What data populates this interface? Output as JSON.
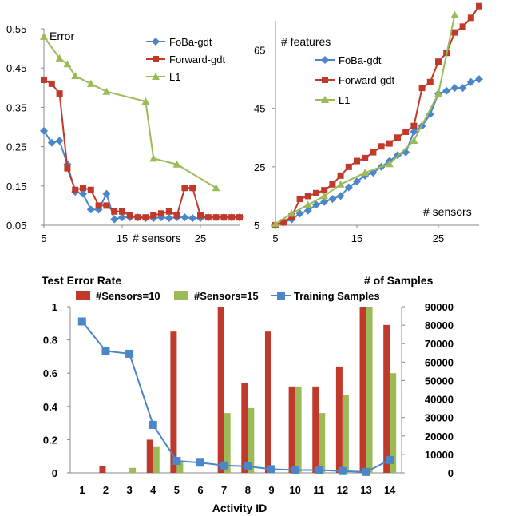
{
  "colors": {
    "blue": "#4a86c8",
    "red": "#c0392b",
    "green": "#9bbb59",
    "axis": "#888888"
  },
  "chart_data": [
    {
      "type": "line",
      "title": "Error",
      "xlabel": "# sensors",
      "xlim": [
        5,
        30
      ],
      "ylim": [
        0.05,
        0.55
      ],
      "xticks": [
        "5",
        "15",
        "25"
      ],
      "xtick_values": [
        5,
        15,
        25
      ],
      "yticks": [
        "0.05",
        "0.15",
        "0.25",
        "0.35",
        "0.45",
        "0.55"
      ],
      "ytick_values": [
        0.05,
        0.15,
        0.25,
        0.35,
        0.45,
        0.55
      ],
      "series": [
        {
          "name": "FoBa-gdt",
          "marker": "diamond",
          "color": "#4a86c8",
          "x": [
            5,
            6,
            7,
            8,
            9,
            10,
            11,
            12,
            13,
            14,
            15,
            16,
            17,
            18,
            19,
            20,
            21,
            22,
            23,
            24,
            25,
            26,
            27,
            28,
            29,
            30
          ],
          "y": [
            0.29,
            0.26,
            0.265,
            0.205,
            0.135,
            0.13,
            0.09,
            0.09,
            0.13,
            0.065,
            0.07,
            0.07,
            0.07,
            0.068,
            0.068,
            0.07,
            0.068,
            0.07,
            0.07,
            0.068,
            0.068,
            0.07,
            0.07,
            0.07,
            0.07,
            0.07
          ]
        },
        {
          "name": "Forward-gdt",
          "marker": "square",
          "color": "#c0392b",
          "x": [
            5,
            6,
            7,
            8,
            9,
            10,
            11,
            12,
            13,
            14,
            15,
            16,
            17,
            18,
            19,
            20,
            21,
            22,
            23,
            24,
            25,
            26,
            27,
            28,
            29,
            30
          ],
          "y": [
            0.42,
            0.41,
            0.385,
            0.195,
            0.14,
            0.145,
            0.14,
            0.1,
            0.1,
            0.085,
            0.085,
            0.075,
            0.07,
            0.07,
            0.075,
            0.08,
            0.085,
            0.075,
            0.145,
            0.145,
            0.075,
            0.07,
            0.07,
            0.07,
            0.07,
            0.07
          ]
        },
        {
          "name": "L1",
          "marker": "triangle",
          "color": "#9bbb59",
          "x": [
            5,
            7,
            8,
            9,
            11,
            13,
            18,
            19,
            22,
            27
          ],
          "y": [
            0.53,
            0.475,
            0.46,
            0.43,
            0.41,
            0.39,
            0.365,
            0.22,
            0.205,
            0.145
          ]
        }
      ]
    },
    {
      "type": "line",
      "title": "# features",
      "xlabel": "# sensors",
      "xlim": [
        5,
        30
      ],
      "ylim": [
        5,
        75
      ],
      "xticks": [
        "5",
        "15",
        "25"
      ],
      "xtick_values": [
        5,
        15,
        25
      ],
      "yticks": [
        "5",
        "25",
        "45",
        "65"
      ],
      "ytick_values": [
        5,
        25,
        45,
        65
      ],
      "series": [
        {
          "name": "FoBa-gdt",
          "marker": "diamond",
          "color": "#4a86c8",
          "x": [
            5,
            6,
            7,
            8,
            9,
            10,
            11,
            12,
            13,
            14,
            15,
            16,
            17,
            18,
            19,
            20,
            21,
            22,
            23,
            24,
            25,
            26,
            27,
            28,
            29,
            30
          ],
          "y": [
            5,
            6,
            7,
            9,
            10,
            12,
            13,
            14,
            15,
            18,
            20,
            22,
            23,
            25,
            27,
            29,
            30,
            37,
            39,
            43,
            50,
            51,
            52,
            52,
            54,
            55
          ]
        },
        {
          "name": "Forward-gdt",
          "marker": "square",
          "color": "#c0392b",
          "x": [
            5,
            6,
            7,
            8,
            9,
            10,
            11,
            12,
            13,
            14,
            15,
            16,
            17,
            18,
            19,
            20,
            21,
            22,
            23,
            24,
            25,
            26,
            27,
            28,
            29,
            30
          ],
          "y": [
            5,
            6,
            8,
            14,
            15,
            16,
            17,
            19,
            22,
            25,
            27,
            28,
            30,
            32,
            33,
            35,
            37,
            39,
            52,
            54,
            61,
            64,
            71,
            73,
            76,
            80
          ]
        },
        {
          "name": "L1",
          "marker": "triangle",
          "color": "#9bbb59",
          "x": [
            5,
            7,
            9,
            11,
            13,
            16,
            19,
            22,
            25,
            27
          ],
          "y": [
            5.5,
            9,
            12,
            15,
            19,
            23,
            26,
            34,
            50,
            77
          ]
        }
      ]
    },
    {
      "type": "bar",
      "title": "Test Error Rate",
      "xlabel": "Activity ID",
      "ylabel_left": "Test Error Rate",
      "ylabel_right": "# of Samples",
      "categories": [
        "1",
        "2",
        "3",
        "4",
        "5",
        "6",
        "7",
        "8",
        "9",
        "10",
        "11",
        "12",
        "13",
        "14"
      ],
      "ylim": [
        0,
        1
      ],
      "yticks": [
        "0",
        "0.2",
        "0.4",
        "0.6",
        "0.8",
        "1"
      ],
      "ytick_values": [
        0,
        0.2,
        0.4,
        0.6,
        0.8,
        1
      ],
      "y2lim": [
        0,
        90000
      ],
      "y2ticks": [
        "0",
        "10000",
        "20000",
        "30000",
        "40000",
        "50000",
        "60000",
        "70000",
        "80000",
        "90000"
      ],
      "y2tick_values": [
        0,
        10000,
        20000,
        30000,
        40000,
        50000,
        60000,
        70000,
        80000,
        90000
      ],
      "series": [
        {
          "name": "#Sensors=10",
          "type": "bar",
          "color": "#c0392b",
          "values": [
            0,
            0.04,
            0,
            0.2,
            0.85,
            0,
            1.0,
            0.54,
            0.85,
            0.52,
            0.52,
            0.64,
            1.0,
            0.89
          ]
        },
        {
          "name": "#Sensors=15",
          "type": "bar",
          "color": "#9bbb59",
          "values": [
            0,
            0,
            0.03,
            0.16,
            0.07,
            0,
            0.36,
            0.39,
            0,
            0.52,
            0.36,
            0.47,
            1.0,
            0.6
          ]
        },
        {
          "name": "Training Samples",
          "type": "line",
          "axis": "right",
          "color": "#4a86c8",
          "values": [
            82000,
            66000,
            64500,
            26000,
            6500,
            5500,
            4000,
            3500,
            2000,
            1500,
            1500,
            1000,
            500,
            7000
          ]
        }
      ]
    }
  ]
}
